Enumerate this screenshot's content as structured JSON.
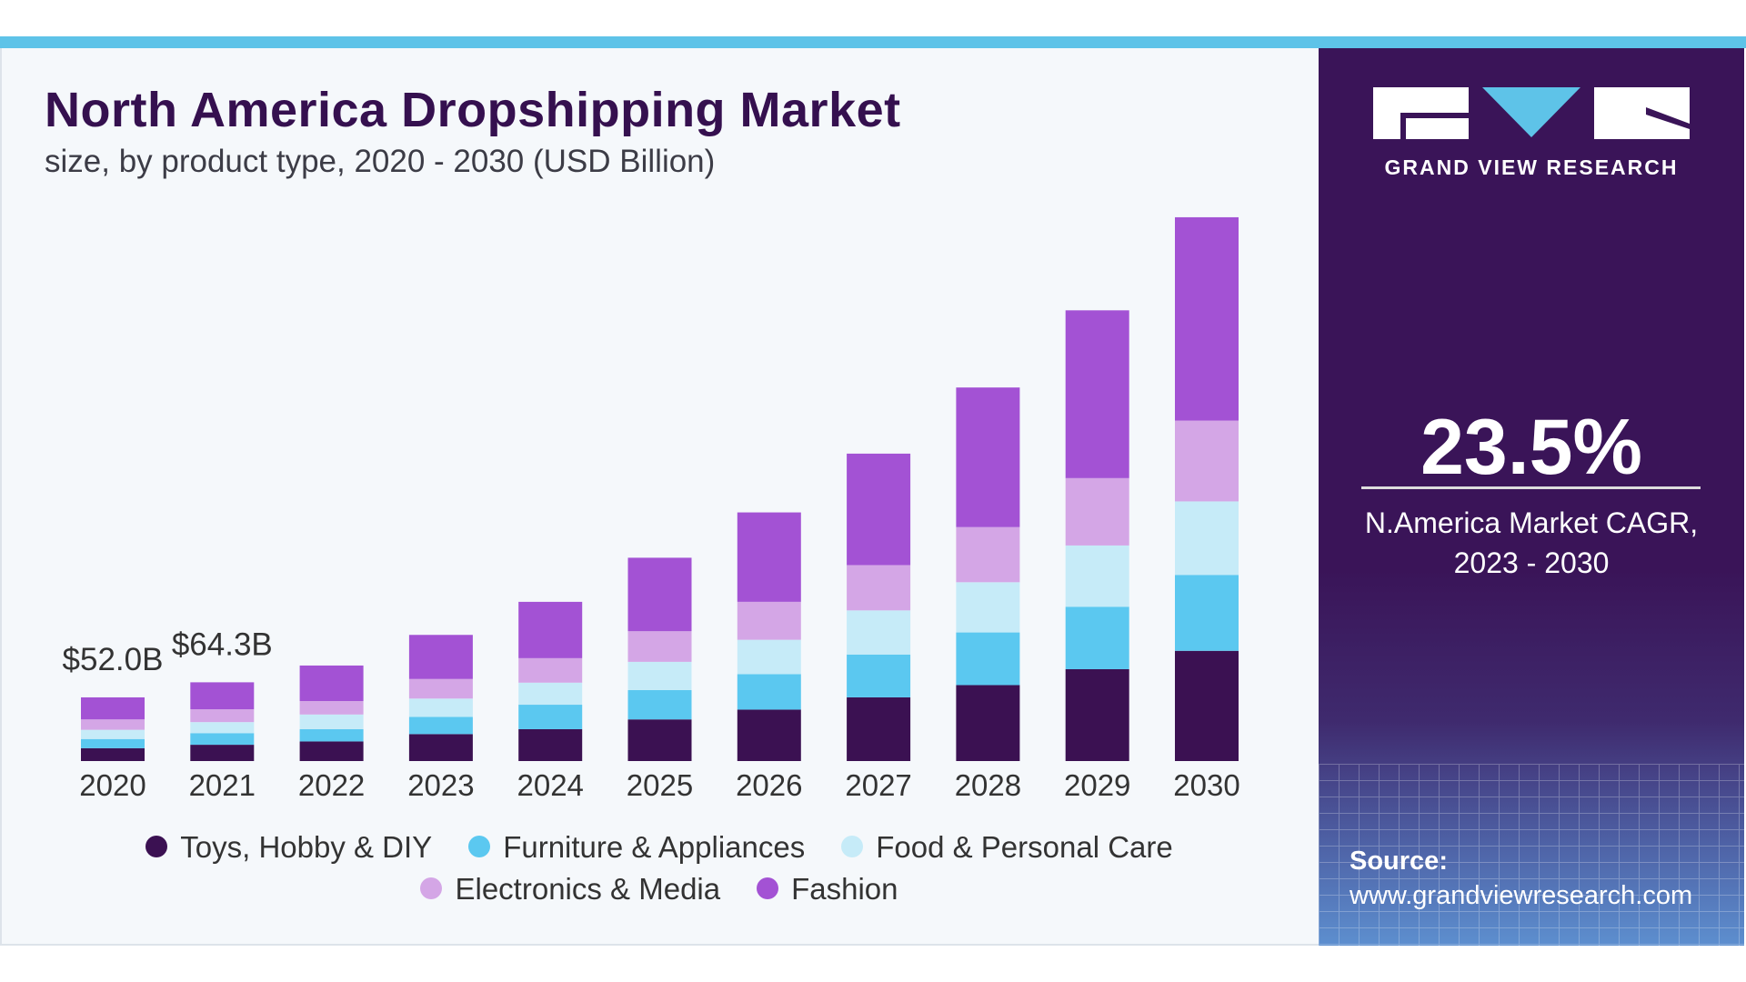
{
  "header": {
    "title": "North America Dropshipping Market",
    "subtitle": "size, by product type, 2020 - 2030 (USD Billion)"
  },
  "sidebar": {
    "brand": "GRAND VIEW RESEARCH",
    "cagr_value": "23.5%",
    "cagr_label_line1": "N.America Market CAGR,",
    "cagr_label_line2": "2023 - 2030",
    "source_label": "Source:",
    "source_url": "www.grandviewresearch.com"
  },
  "colors": {
    "accent_bar": "#5ec3e8",
    "panel": "#3a1458",
    "title": "#35104f"
  },
  "chart_data": {
    "type": "bar",
    "stacked": true,
    "title": "North America Dropshipping Market",
    "subtitle": "size, by product type, 2020 - 2030 (USD Billion)",
    "categories": [
      "2020",
      "2021",
      "2022",
      "2023",
      "2024",
      "2025",
      "2026",
      "2027",
      "2028",
      "2029",
      "2030"
    ],
    "series": [
      {
        "name": "Toys, Hobby & DIY",
        "color": "#3b1152",
        "values": [
          10.5,
          13.3,
          16,
          22,
          26,
          34,
          42,
          52,
          62,
          75,
          90
        ]
      },
      {
        "name": "Furniture & Appliances",
        "color": "#5bc8f0",
        "values": [
          7.5,
          9.5,
          10,
          14,
          20,
          24,
          29,
          35,
          43,
          51,
          62
        ]
      },
      {
        "name": "Food & Personal Care",
        "color": "#c6ebf8",
        "values": [
          7.5,
          9,
          12,
          15,
          18,
          23,
          28,
          36,
          41,
          50,
          60
        ]
      },
      {
        "name": "Electronics & Media",
        "color": "#d4a6e6",
        "values": [
          8.5,
          10.5,
          11,
          16,
          20,
          25,
          31,
          37,
          45,
          55,
          66
        ]
      },
      {
        "name": "Fashion",
        "color": "#a352d4",
        "values": [
          18,
          22,
          29,
          36,
          46,
          60,
          73,
          91,
          114,
          137,
          166
        ]
      }
    ],
    "annotations": [
      {
        "category": "2020",
        "text": "$52.0B"
      },
      {
        "category": "2021",
        "text": "$64.3B"
      }
    ],
    "ylim": [
      0,
      450
    ],
    "grid": false,
    "legend_position": "bottom"
  }
}
